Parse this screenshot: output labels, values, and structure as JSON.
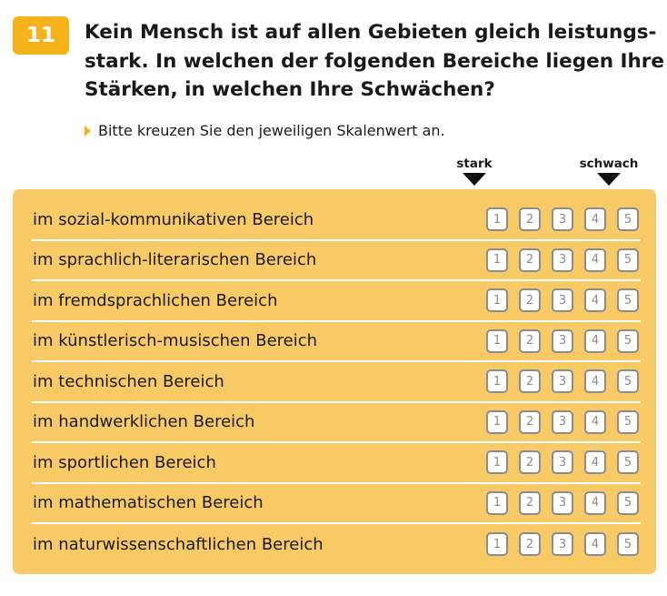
{
  "question": {
    "number": "11",
    "title_lines": [
      "Kein Mensch ist auf allen Gebieten gleich leistungs-",
      "stark. In welchen der folgenden Bereiche liegen Ihre",
      "Stärken, in welchen Ihre Schwächen?"
    ],
    "instruction": "Bitte kreuzen Sie den jeweiligen Skalenwert an."
  },
  "scale": {
    "left_label": "stark",
    "right_label": "schwach",
    "options": [
      "1",
      "2",
      "3",
      "4",
      "5"
    ]
  },
  "items": [
    "im sozial-kommunikativen Bereich",
    "im sprachlich-literarischen Bereich",
    "im fremdsprachlichen Bereich",
    "im künstlerisch-musischen Bereich",
    "im technischen Bereich",
    "im handwerklichen Bereich",
    "im sportlichen Bereich",
    "im mathematischen Bereich",
    "im naturwissenschaftlichen Bereich"
  ],
  "colors": {
    "accent": "#f6b21a",
    "panel": "#f8ca66",
    "box_border": "#8c8c8c"
  }
}
